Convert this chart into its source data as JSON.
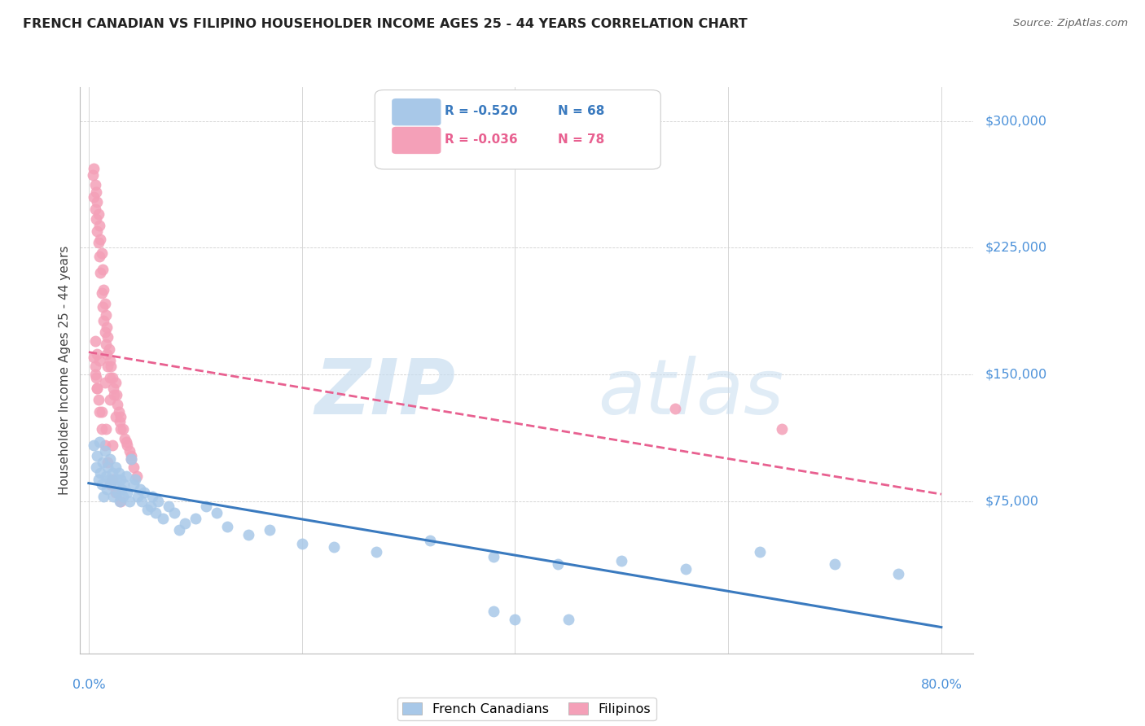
{
  "title": "FRENCH CANADIAN VS FILIPINO HOUSEHOLDER INCOME AGES 25 - 44 YEARS CORRELATION CHART",
  "source": "Source: ZipAtlas.com",
  "ylabel": "Householder Income Ages 25 - 44 years",
  "ytick_labels": [
    "$75,000",
    "$150,000",
    "$225,000",
    "$300,000"
  ],
  "ytick_values": [
    75000,
    150000,
    225000,
    300000
  ],
  "ymax": 320000,
  "ymin": -15000,
  "xmin": -0.008,
  "xmax": 0.83,
  "legend_blue_r": "R = -0.520",
  "legend_blue_n": "N = 68",
  "legend_pink_r": "R = -0.036",
  "legend_pink_n": "N = 78",
  "legend_label_blue": "French Canadians",
  "legend_label_pink": "Filipinos",
  "blue_color": "#a8c8e8",
  "pink_color": "#f4a0b8",
  "blue_line_color": "#3a7abf",
  "pink_line_color": "#e86090",
  "watermark_zip": "ZIP",
  "watermark_atlas": "atlas",
  "watermark_color": "#ddeeff",
  "title_color": "#222222",
  "source_color": "#666666",
  "axis_label_color": "#444444",
  "ytick_color": "#4a90d9",
  "xtick_color": "#4a90d9",
  "grid_color": "#d0d0d0",
  "background_color": "#ffffff",
  "french_canadian_x": [
    0.005,
    0.007,
    0.008,
    0.009,
    0.01,
    0.011,
    0.012,
    0.013,
    0.014,
    0.015,
    0.016,
    0.017,
    0.018,
    0.019,
    0.02,
    0.021,
    0.022,
    0.023,
    0.024,
    0.025,
    0.026,
    0.027,
    0.028,
    0.029,
    0.03,
    0.031,
    0.032,
    0.033,
    0.035,
    0.036,
    0.038,
    0.04,
    0.042,
    0.044,
    0.046,
    0.048,
    0.05,
    0.052,
    0.055,
    0.058,
    0.06,
    0.063,
    0.065,
    0.07,
    0.075,
    0.08,
    0.085,
    0.09,
    0.1,
    0.11,
    0.12,
    0.13,
    0.15,
    0.17,
    0.2,
    0.23,
    0.27,
    0.32,
    0.38,
    0.44,
    0.5,
    0.56,
    0.63,
    0.7,
    0.76,
    0.4,
    0.45,
    0.38
  ],
  "french_canadian_y": [
    108000,
    95000,
    102000,
    88000,
    110000,
    92000,
    85000,
    98000,
    78000,
    105000,
    90000,
    82000,
    95000,
    88000,
    100000,
    86000,
    92000,
    78000,
    85000,
    95000,
    88000,
    80000,
    92000,
    75000,
    88000,
    82000,
    78000,
    85000,
    90000,
    80000,
    75000,
    100000,
    85000,
    88000,
    78000,
    82000,
    75000,
    80000,
    70000,
    72000,
    78000,
    68000,
    75000,
    65000,
    72000,
    68000,
    58000,
    62000,
    65000,
    72000,
    68000,
    60000,
    55000,
    58000,
    50000,
    48000,
    45000,
    52000,
    42000,
    38000,
    40000,
    35000,
    45000,
    38000,
    32000,
    5000,
    5000,
    10000
  ],
  "filipino_x": [
    0.004,
    0.005,
    0.005,
    0.006,
    0.006,
    0.007,
    0.007,
    0.008,
    0.008,
    0.009,
    0.009,
    0.01,
    0.01,
    0.011,
    0.011,
    0.012,
    0.012,
    0.013,
    0.013,
    0.014,
    0.014,
    0.015,
    0.015,
    0.016,
    0.016,
    0.017,
    0.017,
    0.018,
    0.018,
    0.019,
    0.02,
    0.02,
    0.021,
    0.022,
    0.023,
    0.024,
    0.025,
    0.026,
    0.027,
    0.028,
    0.029,
    0.03,
    0.032,
    0.034,
    0.036,
    0.038,
    0.04,
    0.042,
    0.045,
    0.005,
    0.006,
    0.007,
    0.008,
    0.009,
    0.01,
    0.012,
    0.015,
    0.018,
    0.022,
    0.006,
    0.008,
    0.01,
    0.015,
    0.02,
    0.025,
    0.03,
    0.035,
    0.04,
    0.006,
    0.008,
    0.012,
    0.016,
    0.022,
    0.55,
    0.65,
    0.02,
    0.025,
    0.03
  ],
  "filipino_y": [
    268000,
    272000,
    255000,
    262000,
    248000,
    258000,
    242000,
    252000,
    235000,
    245000,
    228000,
    238000,
    220000,
    230000,
    210000,
    222000,
    198000,
    212000,
    190000,
    200000,
    182000,
    192000,
    175000,
    185000,
    168000,
    178000,
    162000,
    172000,
    155000,
    165000,
    158000,
    148000,
    155000,
    148000,
    142000,
    138000,
    145000,
    138000,
    132000,
    128000,
    122000,
    125000,
    118000,
    112000,
    108000,
    105000,
    100000,
    95000,
    90000,
    160000,
    155000,
    148000,
    142000,
    135000,
    128000,
    118000,
    108000,
    98000,
    88000,
    170000,
    162000,
    158000,
    145000,
    135000,
    125000,
    118000,
    110000,
    102000,
    150000,
    142000,
    128000,
    118000,
    108000,
    130000,
    118000,
    85000,
    80000,
    75000
  ]
}
